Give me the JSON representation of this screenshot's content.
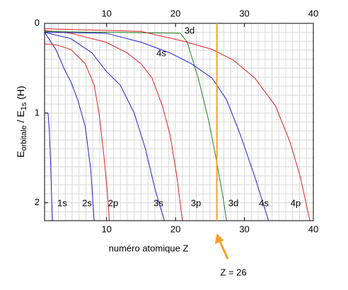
{
  "chart_data": {
    "type": "line",
    "xlabel": "numéro atomique Z",
    "ylabel_parts": [
      "E",
      "orbitale",
      " / E",
      "1s",
      " (H)"
    ],
    "xlim": [
      1,
      40
    ],
    "ylim": [
      0,
      2.2
    ],
    "y_inverted": true,
    "xticks": [
      10,
      20,
      30,
      40
    ],
    "yticks": [
      0,
      1,
      2
    ],
    "grid": true,
    "minor_grid": {
      "x": 1,
      "y": 0.1
    },
    "series": [
      {
        "name": "1s",
        "color": "#1f1fd0",
        "x": [
          1.5,
          1.7,
          1.9,
          2.05,
          2.15
        ],
        "values": [
          1,
          1.2,
          1.6,
          2.0,
          2.2
        ]
      },
      {
        "name": "2s",
        "color": "#1f1fd0",
        "x": [
          1,
          2.7,
          3.8,
          4.8,
          5.8,
          6.9,
          7.7,
          8.2
        ],
        "values": [
          0.1,
          0.3,
          0.5,
          0.65,
          0.85,
          1.15,
          1.63,
          2.2
        ]
      },
      {
        "name": "2p",
        "color": "#e02020",
        "x": [
          1,
          2.7,
          4.8,
          6.9,
          8.2,
          8.9,
          9.6,
          10.1,
          10.4
        ],
        "values": [
          0.23,
          0.24,
          0.29,
          0.45,
          0.69,
          1.0,
          1.47,
          1.87,
          2.2
        ]
      },
      {
        "name": "3s",
        "color": "#1f1fd0",
        "x": [
          1,
          4.8,
          7.9,
          9.9,
          12,
          14,
          15.6,
          17.1,
          18.4
        ],
        "values": [
          0.1,
          0.17,
          0.33,
          0.53,
          0.69,
          1.0,
          1.39,
          1.87,
          2.2
        ]
      },
      {
        "name": "3p",
        "color": "#e02020",
        "x": [
          1,
          4.8,
          9.9,
          13,
          15,
          16.6,
          18.1,
          19.2,
          20.2,
          21
        ],
        "values": [
          0.08,
          0.11,
          0.21,
          0.33,
          0.45,
          0.61,
          0.92,
          1.24,
          1.71,
          2.2
        ]
      },
      {
        "name": "3d",
        "color": "#208020",
        "x": [
          1,
          10,
          20.7,
          21.7,
          23.3,
          24.8,
          25.8,
          26.9,
          27.4
        ],
        "values": [
          0.09,
          0.1,
          0.11,
          0.21,
          0.61,
          1.08,
          1.47,
          1.94,
          2.2
        ]
      },
      {
        "name": "4s",
        "color": "#1f1fd0",
        "x": [
          1,
          9.9,
          15,
          19.2,
          22.3,
          25.3,
          27.4,
          29.4,
          31.5,
          33.5
        ],
        "values": [
          0.1,
          0.11,
          0.21,
          0.33,
          0.45,
          0.61,
          0.85,
          1.24,
          1.71,
          2.2
        ]
      },
      {
        "name": "4p",
        "color": "#e02020",
        "x": [
          1,
          15,
          21.2,
          25.3,
          28.4,
          31.5,
          34.5,
          36.6,
          38.1,
          39.5
        ],
        "values": [
          0.06,
          0.09,
          0.2,
          0.29,
          0.41,
          0.61,
          0.92,
          1.32,
          1.71,
          2.2
        ]
      }
    ],
    "marker": {
      "x": 26,
      "label": "Z = 26",
      "color": "#f5a030"
    }
  }
}
